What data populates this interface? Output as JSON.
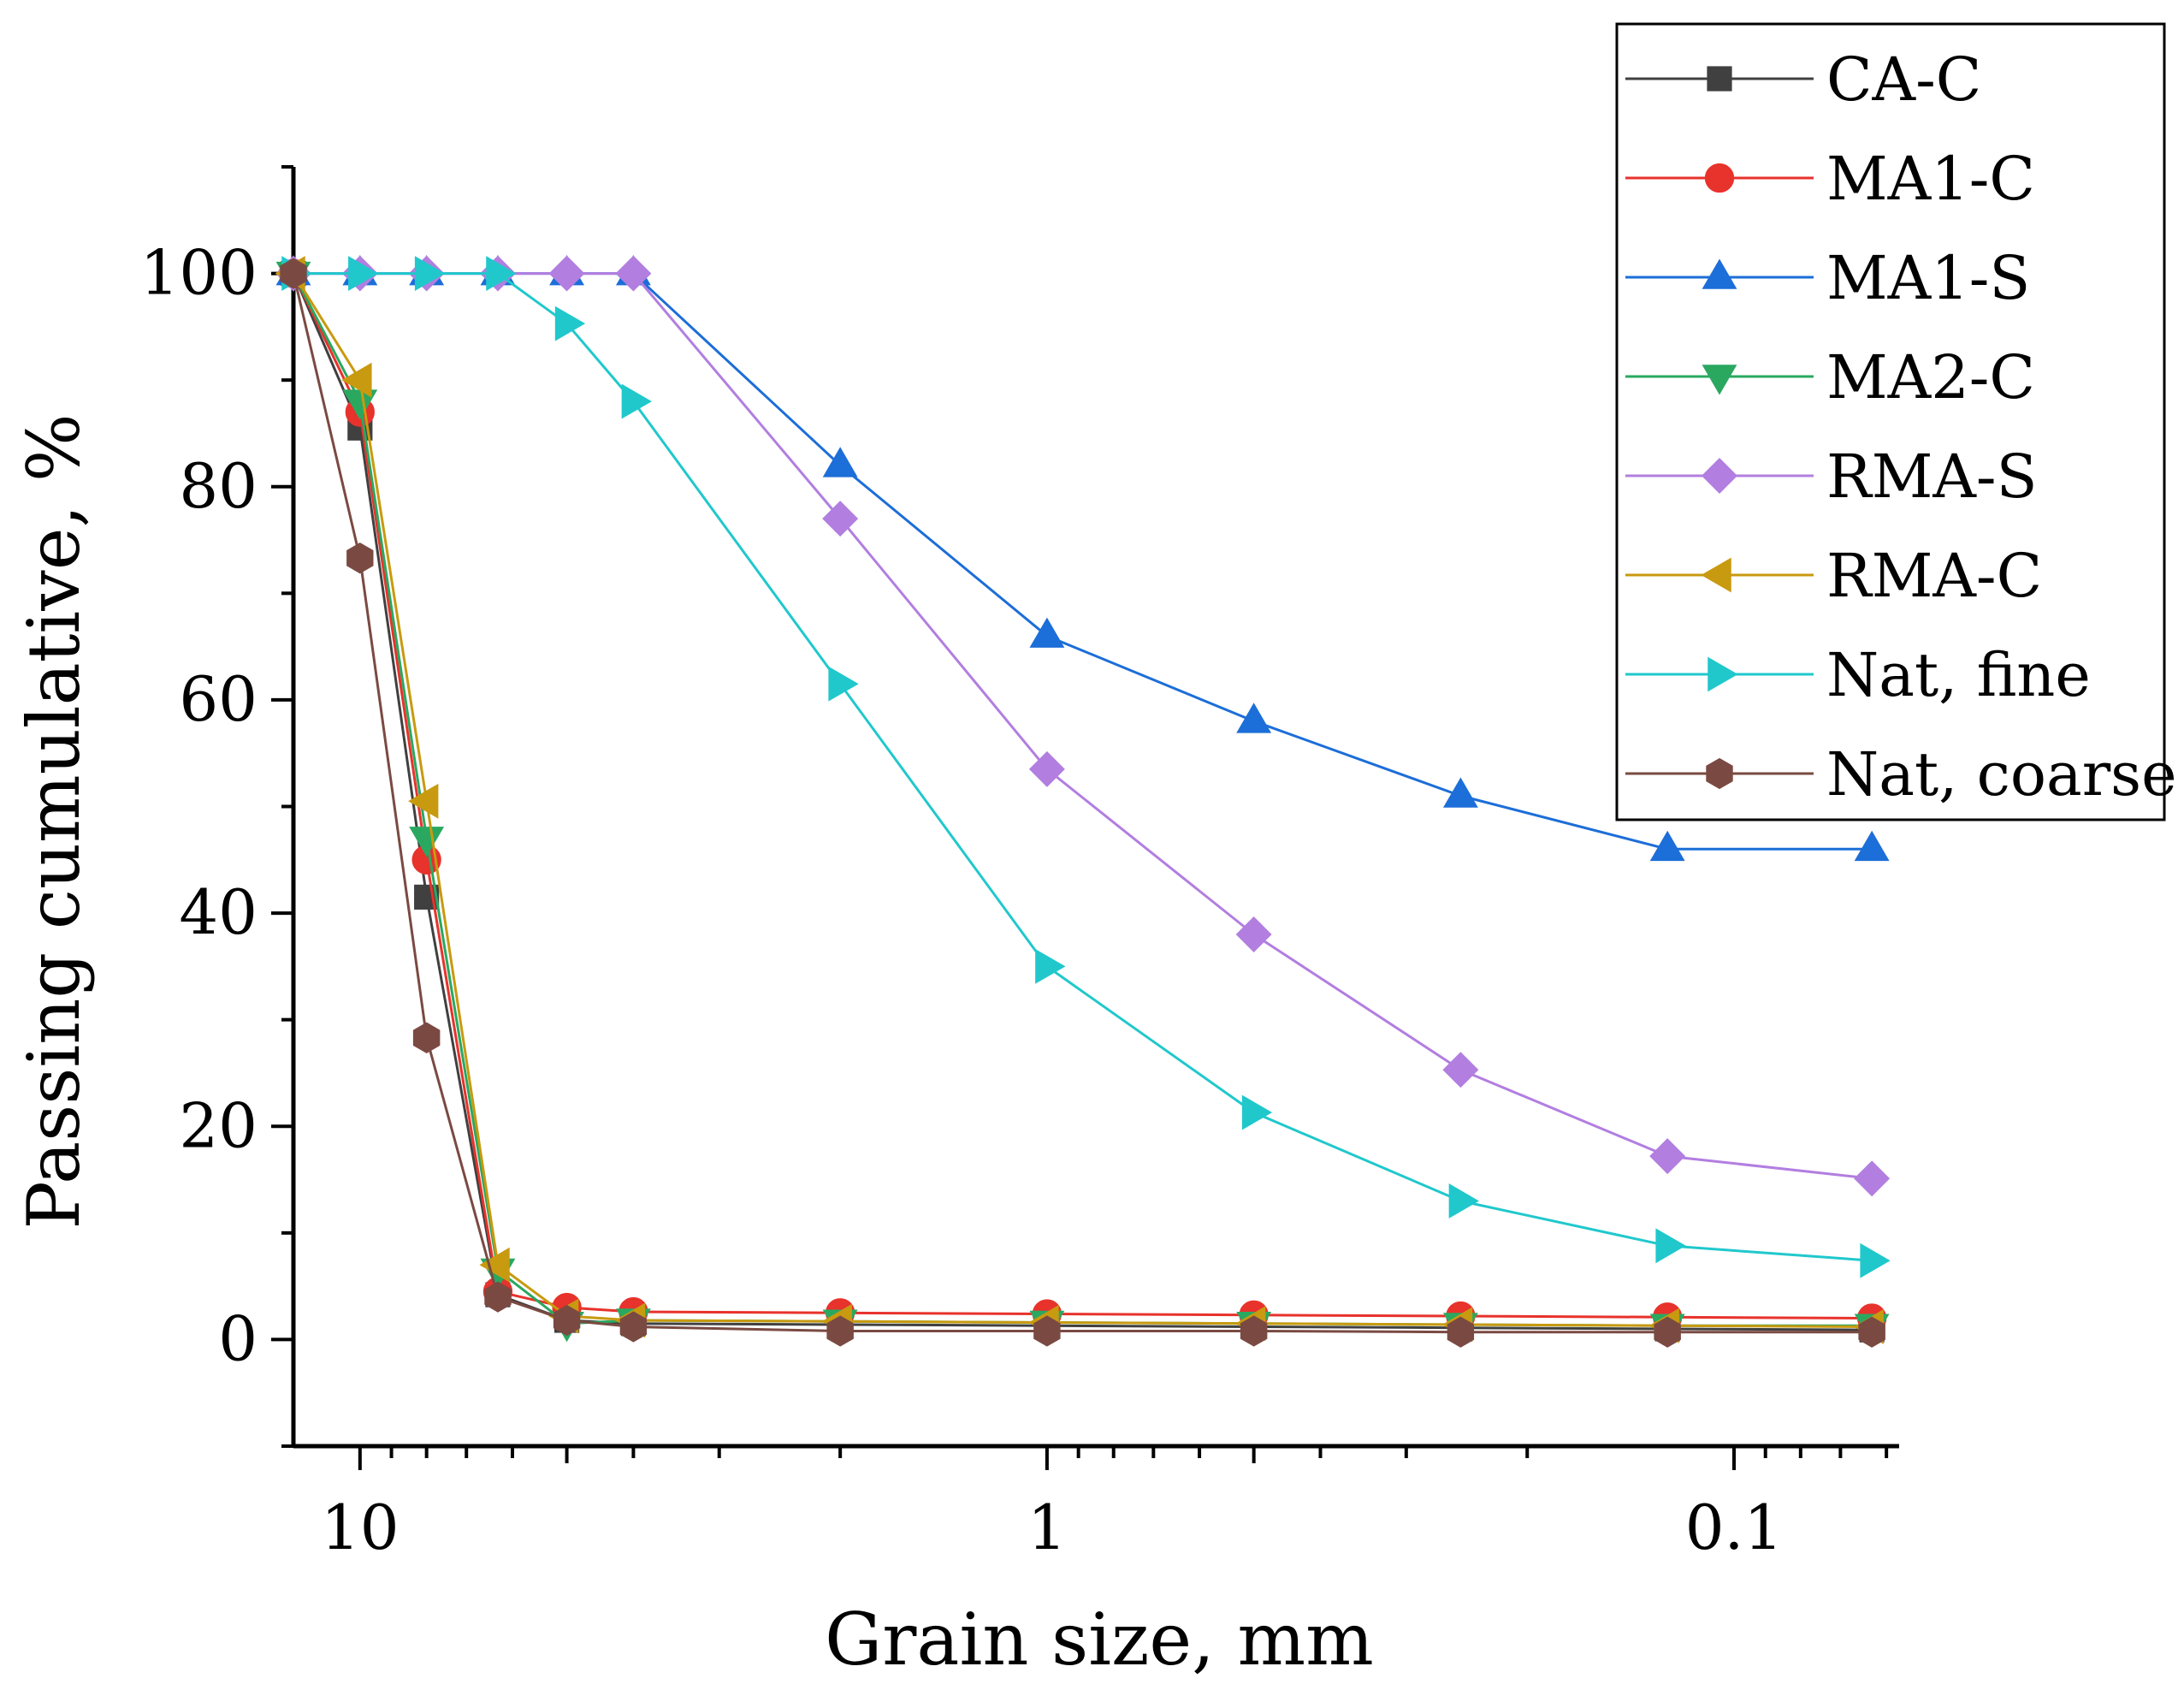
{
  "chart_data": {
    "type": "line",
    "title": "",
    "xlabel": "Grain size, mm",
    "ylabel": "Passing cumulative, %",
    "xscale": "log",
    "x_reversed": true,
    "xlim": [
      12.5,
      0.0575
    ],
    "ylim": [
      -10,
      110
    ],
    "xticks": [
      10,
      1,
      0.1
    ],
    "xtick_labels": [
      "10",
      "1",
      "0.1"
    ],
    "yticks": [
      0,
      20,
      40,
      60,
      80,
      100
    ],
    "ytick_labels": [
      "0",
      "20",
      "40",
      "60",
      "80",
      "100"
    ],
    "legend_position": "top-right",
    "series": [
      {
        "name": "CA-C",
        "color": "#404040",
        "marker": "square",
        "x": [
          12.5,
          10,
          8,
          6.3,
          5,
          4,
          2,
          1,
          0.5,
          0.25,
          0.125,
          0.063
        ],
        "y": [
          100,
          85.5,
          41.5,
          4.2,
          1.8,
          1.5,
          1.4,
          1.3,
          1.2,
          1.1,
          1.0,
          0.9
        ]
      },
      {
        "name": "MA1-C",
        "color": "#e8322c",
        "marker": "circle",
        "x": [
          12.5,
          10,
          8,
          6.3,
          5,
          4,
          2,
          1,
          0.5,
          0.25,
          0.125,
          0.063
        ],
        "y": [
          100,
          87,
          45,
          4.5,
          3.0,
          2.6,
          2.5,
          2.4,
          2.3,
          2.2,
          2.1,
          2.0
        ]
      },
      {
        "name": "MA1-S",
        "color": "#1c6ed8",
        "marker": "triangle-up",
        "x": [
          12.5,
          10,
          8,
          6.3,
          5,
          4,
          2,
          1,
          0.5,
          0.25,
          0.125,
          0.063
        ],
        "y": [
          100,
          100,
          100,
          100,
          100,
          100,
          82,
          66,
          58,
          51,
          46,
          46
        ]
      },
      {
        "name": "MA2-C",
        "color": "#2aa860",
        "marker": "triangle-down",
        "x": [
          12.5,
          10,
          8,
          6.3,
          5,
          4,
          2,
          1,
          0.5,
          0.25,
          0.125,
          0.063
        ],
        "y": [
          100,
          88,
          47,
          6.5,
          1.5,
          1.8,
          1.7,
          1.6,
          1.5,
          1.4,
          1.3,
          1.3
        ]
      },
      {
        "name": "RMA-S",
        "color": "#b27ee0",
        "marker": "diamond",
        "x": [
          12.5,
          10,
          8,
          6.3,
          5,
          4,
          2,
          1,
          0.5,
          0.25,
          0.125,
          0.063
        ],
        "y": [
          100,
          100,
          100,
          100,
          100,
          100,
          77,
          53.5,
          38,
          25.3,
          17.2,
          15.1
        ]
      },
      {
        "name": "RMA-C",
        "color": "#c89a10",
        "marker": "triangle-left",
        "x": [
          12.5,
          10,
          8,
          6.3,
          5,
          4,
          2,
          1,
          0.5,
          0.25,
          0.125,
          0.063
        ],
        "y": [
          100,
          90,
          50.5,
          7,
          2.2,
          1.8,
          1.7,
          1.6,
          1.5,
          1.4,
          1.3,
          1.2
        ]
      },
      {
        "name": "Nat, fine",
        "color": "#20c8cc",
        "marker": "triangle-right",
        "x": [
          12.5,
          10,
          8,
          6.3,
          5,
          4,
          2,
          1,
          0.5,
          0.25,
          0.125,
          0.063
        ],
        "y": [
          100,
          100,
          100,
          100,
          95.3,
          88,
          61.5,
          35,
          21.3,
          13,
          8.8,
          7.4
        ]
      },
      {
        "name": "Nat, coarse",
        "color": "#7a4a42",
        "marker": "hexagon",
        "x": [
          12.5,
          10,
          8,
          6.3,
          5,
          4,
          2,
          1,
          0.5,
          0.25,
          0.125,
          0.063
        ],
        "y": [
          100,
          73.3,
          28.3,
          4.0,
          1.8,
          1.2,
          0.8,
          0.8,
          0.8,
          0.7,
          0.7,
          0.7
        ]
      }
    ]
  }
}
